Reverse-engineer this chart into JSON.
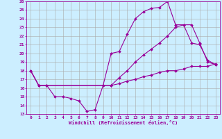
{
  "xlabel": "Windchill (Refroidissement éolien,°C)",
  "bg_color": "#cceeff",
  "line_color": "#990099",
  "grid_color": "#aaaaaa",
  "xlim": [
    -0.5,
    23.5
  ],
  "ylim": [
    13,
    26
  ],
  "xticks": [
    0,
    1,
    2,
    3,
    4,
    5,
    6,
    7,
    8,
    9,
    10,
    11,
    12,
    13,
    14,
    15,
    16,
    17,
    18,
    19,
    20,
    21,
    22,
    23
  ],
  "yticks": [
    13,
    14,
    15,
    16,
    17,
    18,
    19,
    20,
    21,
    22,
    23,
    24,
    25,
    26
  ],
  "line1_x": [
    0,
    1,
    2,
    3,
    4,
    5,
    6,
    7,
    8,
    9,
    10,
    11,
    12,
    13,
    14,
    15,
    16,
    17,
    18,
    19,
    20,
    21,
    22,
    23
  ],
  "line1_y": [
    18,
    16.3,
    16.3,
    15.0,
    15.0,
    14.8,
    14.5,
    13.3,
    13.5,
    16.3,
    20.0,
    20.2,
    22.2,
    24.0,
    24.8,
    25.2,
    25.3,
    26.0,
    23.3,
    23.3,
    21.2,
    21.0,
    19.2,
    18.7
  ],
  "line2_x": [
    0,
    1,
    2,
    10,
    11,
    12,
    13,
    14,
    15,
    16,
    17,
    18,
    19,
    20,
    21,
    22,
    23
  ],
  "line2_y": [
    18,
    16.3,
    16.3,
    16.3,
    17.2,
    18.0,
    19.0,
    19.8,
    20.5,
    21.2,
    22.0,
    23.0,
    23.3,
    23.3,
    21.2,
    19.0,
    18.7
  ],
  "line3_x": [
    0,
    1,
    2,
    10,
    11,
    12,
    13,
    14,
    15,
    16,
    17,
    18,
    19,
    20,
    21,
    22,
    23
  ],
  "line3_y": [
    18,
    16.3,
    16.3,
    16.3,
    16.5,
    16.8,
    17.0,
    17.3,
    17.5,
    17.8,
    18.0,
    18.0,
    18.2,
    18.5,
    18.5,
    18.5,
    18.8
  ]
}
